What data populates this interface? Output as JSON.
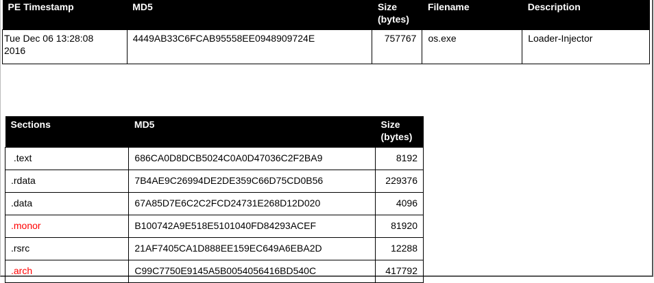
{
  "file_table": {
    "headers": {
      "timestamp": "PE Timestamp",
      "md5": "MD5",
      "size_line1": "Size",
      "size_line2": "(bytes)",
      "filename": "Filename",
      "description": "Description"
    },
    "row": {
      "timestamp_line1": "Tue Dec 06 13:28:08",
      "timestamp_line2": "2016",
      "md5": "4449AB33C6FCAB95558EE0948909724E",
      "size": "757767",
      "filename": "os.exe",
      "description": "Loader-Injector"
    }
  },
  "sections_table": {
    "headers": {
      "sections": "Sections",
      "md5": "MD5",
      "size_line1": "Size",
      "size_line2": "(bytes)"
    },
    "highlight_color": "#ff0000",
    "rows": [
      {
        "section": " .text",
        "md5": "686CA0D8DCB5024C0A0D47036C2F2BA9",
        "size": "8192",
        "highlight": false
      },
      {
        "section": ".rdata",
        "md5": "7B4AE9C26994DE2DE359C66D75CD0B56",
        "size": "229376",
        "highlight": false
      },
      {
        "section": ".data",
        "md5": "67A85D7E6C2C2FCD24731E268D12D020",
        "size": "4096",
        "highlight": false
      },
      {
        "section": ".monor",
        "md5": "B100742A9E518E5101040FD84293ACEF",
        "size": "81920",
        "highlight": true
      },
      {
        "section": ".rsrc",
        "md5": "21AF7405CA1D888EE159EC649A6EBA2D",
        "size": "12288",
        "highlight": false
      },
      {
        "section": ".arch",
        "md5": "C99C7750E9145A5B0054056416BD540C",
        "size": "417792",
        "highlight": true
      }
    ]
  }
}
